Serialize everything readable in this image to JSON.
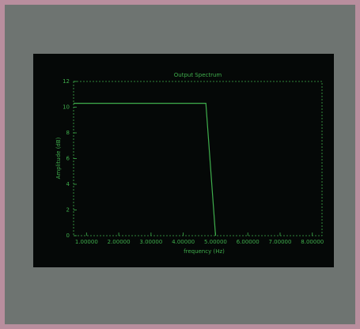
{
  "chart_data": {
    "type": "line",
    "title": "Output Spectrum",
    "x_label": "frequency (Hz)",
    "y_label": "Amplitude (dB)",
    "x": [
      0.6,
      4.7,
      5.0
    ],
    "values": [
      10.3,
      10.3,
      0
    ],
    "color": "#3fae4c",
    "xlim": [
      0.6,
      8.3
    ],
    "ylim": [
      0,
      12
    ],
    "xticks": [
      {
        "value": 1,
        "label": "1.00000"
      },
      {
        "value": 2,
        "label": "2.00000"
      },
      {
        "value": 3,
        "label": "3.00000"
      },
      {
        "value": 4,
        "label": "4.00000"
      },
      {
        "value": 5,
        "label": "5.00000"
      },
      {
        "value": 6,
        "label": "6.00000"
      },
      {
        "value": 7,
        "label": "7.00000"
      },
      {
        "value": 8,
        "label": "8.00000"
      }
    ],
    "yticks": [
      0,
      2,
      4,
      6,
      8,
      10,
      12
    ],
    "grid": false
  }
}
